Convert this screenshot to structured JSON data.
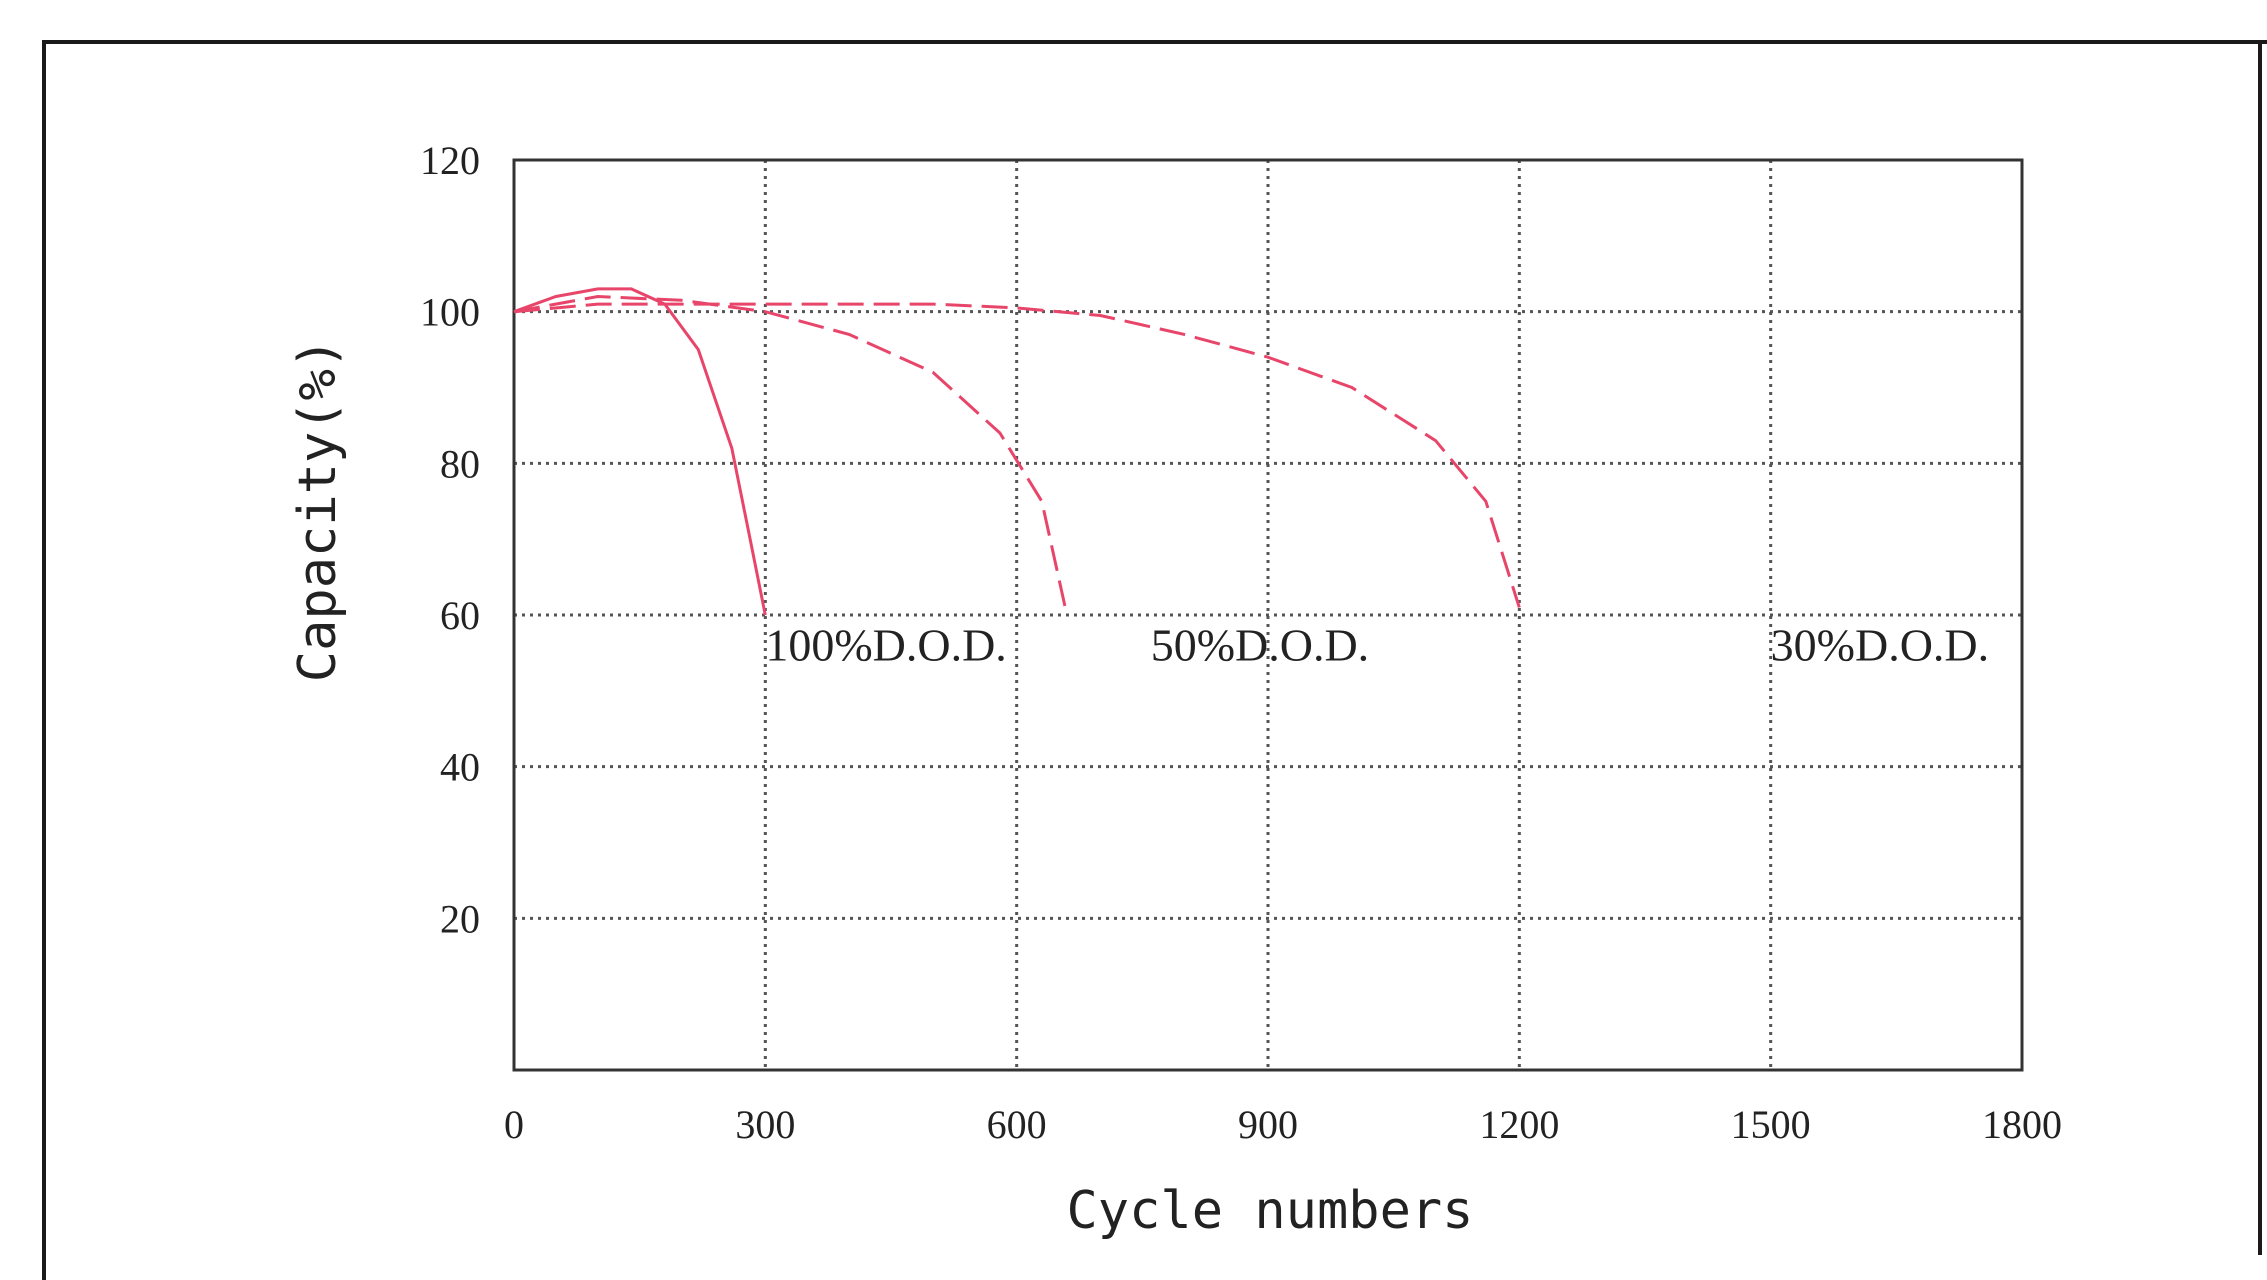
{
  "chart_data": {
    "type": "line",
    "title": "",
    "xlabel": "Cycle numbers",
    "ylabel": "Capacity(%)",
    "xlim": [
      0,
      1800
    ],
    "ylim": [
      0,
      120
    ],
    "xticks": [
      "0",
      "300",
      "600",
      "900",
      "1200",
      "1500",
      "1800"
    ],
    "yticks": [
      "20",
      "40",
      "60",
      "80",
      "100",
      "120"
    ],
    "grid": true,
    "line_color": "#e8456a",
    "series": [
      {
        "name": "100%D.O.D.",
        "dash": "solid",
        "x": [
          0,
          50,
          100,
          140,
          180,
          220,
          260,
          280,
          300
        ],
        "y": [
          100,
          102,
          103,
          103,
          101,
          95,
          82,
          71,
          60
        ]
      },
      {
        "name": "50%D.O.D.",
        "dash": "dashed",
        "x": [
          0,
          100,
          200,
          300,
          400,
          500,
          580,
          630,
          660
        ],
        "y": [
          100,
          102,
          101.5,
          100,
          97,
          92,
          84,
          75,
          60
        ]
      },
      {
        "name": "30%D.O.D.",
        "dash": "dashed",
        "x": [
          0,
          100,
          200,
          300,
          400,
          500,
          600,
          700,
          800,
          900,
          1000,
          1100,
          1160,
          1200
        ],
        "y": [
          100,
          101,
          101,
          101,
          101,
          101,
          100.5,
          99.5,
          97,
          94,
          90,
          83,
          75,
          61
        ]
      }
    ],
    "annotations": [
      {
        "text": "100%D.O.D.",
        "x": 300,
        "y": 54
      },
      {
        "text": "50%D.O.D.",
        "x": 760,
        "y": 54
      },
      {
        "text": "30%D.O.D.",
        "x": 1500,
        "y": 54
      }
    ]
  }
}
